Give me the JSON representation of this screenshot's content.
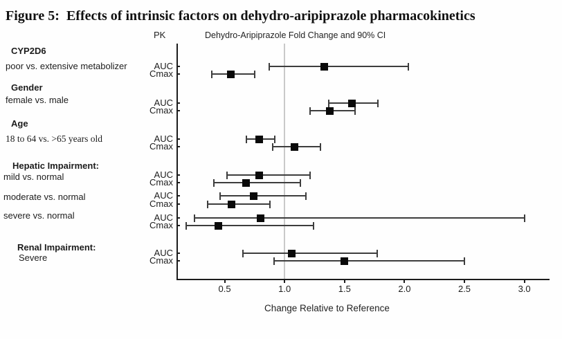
{
  "figure_title": "Figure 5:  Effects of intrinsic factors on dehydro-aripiprazole pharmacokinetics",
  "pk_column_header": "PK",
  "chart_data": {
    "type": "forest",
    "title": "Dehydro-Aripiprazole Fold Change and 90% CI",
    "xlabel": "Change Relative to Reference",
    "x_ticks": [
      0.5,
      1.0,
      1.5,
      2.0,
      2.5,
      3.0
    ],
    "x_range": [
      0.11,
      3.21
    ],
    "reference_line": 1.0,
    "grid": false,
    "colors": {
      "marker": "#0a0a0a",
      "whisker": "#3d3d3d",
      "reference_line": "#c9c9c9",
      "axis": "#1c1c1c"
    },
    "sections": [
      {
        "heading": "CYP2D6",
        "comparisons": [
          {
            "label": "poor vs. extensive metabolizer",
            "rows": [
              {
                "pk": "AUC",
                "estimate": 1.33,
                "ci_low": 0.87,
                "ci_high": 2.03
              },
              {
                "pk": "Cmax",
                "estimate": 0.55,
                "ci_low": 0.39,
                "ci_high": 0.75
              }
            ]
          }
        ]
      },
      {
        "heading": "Gender",
        "comparisons": [
          {
            "label": "female vs. male",
            "rows": [
              {
                "pk": "AUC",
                "estimate": 1.56,
                "ci_low": 1.37,
                "ci_high": 1.78
              },
              {
                "pk": "Cmax",
                "estimate": 1.38,
                "ci_low": 1.21,
                "ci_high": 1.59
              }
            ]
          }
        ]
      },
      {
        "heading": "Age",
        "comparisons": [
          {
            "label": "18 to 64 vs. >65 years old",
            "rows": [
              {
                "pk": "AUC",
                "estimate": 0.79,
                "ci_low": 0.68,
                "ci_high": 0.92
              },
              {
                "pk": "Cmax",
                "estimate": 1.08,
                "ci_low": 0.9,
                "ci_high": 1.3
              }
            ]
          }
        ]
      },
      {
        "heading": "Hepatic Impairment:",
        "comparisons": [
          {
            "label": "mild vs. normal",
            "rows": [
              {
                "pk": "AUC",
                "estimate": 0.79,
                "ci_low": 0.52,
                "ci_high": 1.21
              },
              {
                "pk": "Cmax",
                "estimate": 0.68,
                "ci_low": 0.41,
                "ci_high": 1.13
              }
            ]
          },
          {
            "label": "moderate vs. normal",
            "rows": [
              {
                "pk": "AUC",
                "estimate": 0.74,
                "ci_low": 0.46,
                "ci_high": 1.18
              },
              {
                "pk": "Cmax",
                "estimate": 0.56,
                "ci_low": 0.36,
                "ci_high": 0.88
              }
            ]
          },
          {
            "label": "severe vs. normal",
            "rows": [
              {
                "pk": "AUC",
                "estimate": 0.8,
                "ci_low": 0.25,
                "ci_high": 3.0
              },
              {
                "pk": "Cmax",
                "estimate": 0.45,
                "ci_low": 0.18,
                "ci_high": 1.24
              }
            ]
          }
        ]
      },
      {
        "heading": "Renal Impairment:",
        "comparisons": [
          {
            "label": "Severe",
            "rows": [
              {
                "pk": "AUC",
                "estimate": 1.06,
                "ci_low": 0.65,
                "ci_high": 1.77
              },
              {
                "pk": "Cmax",
                "estimate": 1.5,
                "ci_low": 0.91,
                "ci_high": 2.5
              }
            ]
          }
        ]
      }
    ]
  }
}
